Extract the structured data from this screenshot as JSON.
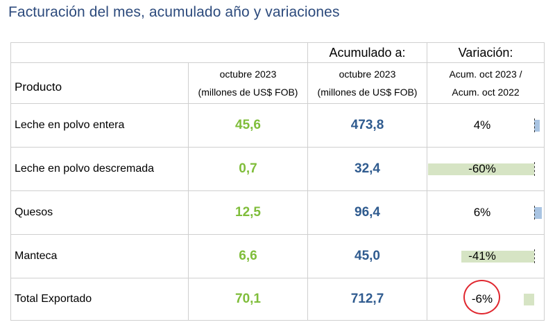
{
  "title": "Facturación del mes, acumulado año y variaciones",
  "header": {
    "acumulado": "Acumulado a:",
    "variacion": "Variación:",
    "producto": "Producto",
    "mes_line1": "octubre 2023",
    "mes_line2": "(millones de US$ FOB)",
    "acum_line1": "octubre 2023",
    "acum_line2": "(millones de US$ FOB)",
    "var_line1": "Acum. oct 2023 /",
    "var_line2": "Acum. oct 2022"
  },
  "rows": [
    {
      "producto": "Leche en polvo entera",
      "mes": "45,6",
      "acumulado": "473,8",
      "variacion": "4%",
      "variacion_value": 4
    },
    {
      "producto": "Leche en polvo descremada",
      "mes": "0,7",
      "acumulado": "32,4",
      "variacion": "-60%",
      "variacion_value": -60
    },
    {
      "producto": "Quesos",
      "mes": "12,5",
      "acumulado": "96,4",
      "variacion": "6%",
      "variacion_value": 6
    },
    {
      "producto": "Manteca",
      "mes": "6,6",
      "acumulado": "45,0",
      "variacion": "-41%",
      "variacion_value": -41
    },
    {
      "producto": "Total Exportado",
      "mes": "70,1",
      "acumulado": "712,7",
      "variacion": "-6%",
      "variacion_value": -6
    }
  ],
  "colors": {
    "title": "#2c4a7c",
    "month_values": "#7fbd3a",
    "cumulative_values": "#2f5b8f",
    "negative_bar": "#d6e4c4",
    "positive_bar": "#a9c4e2",
    "highlight_circle": "#e0272f"
  }
}
